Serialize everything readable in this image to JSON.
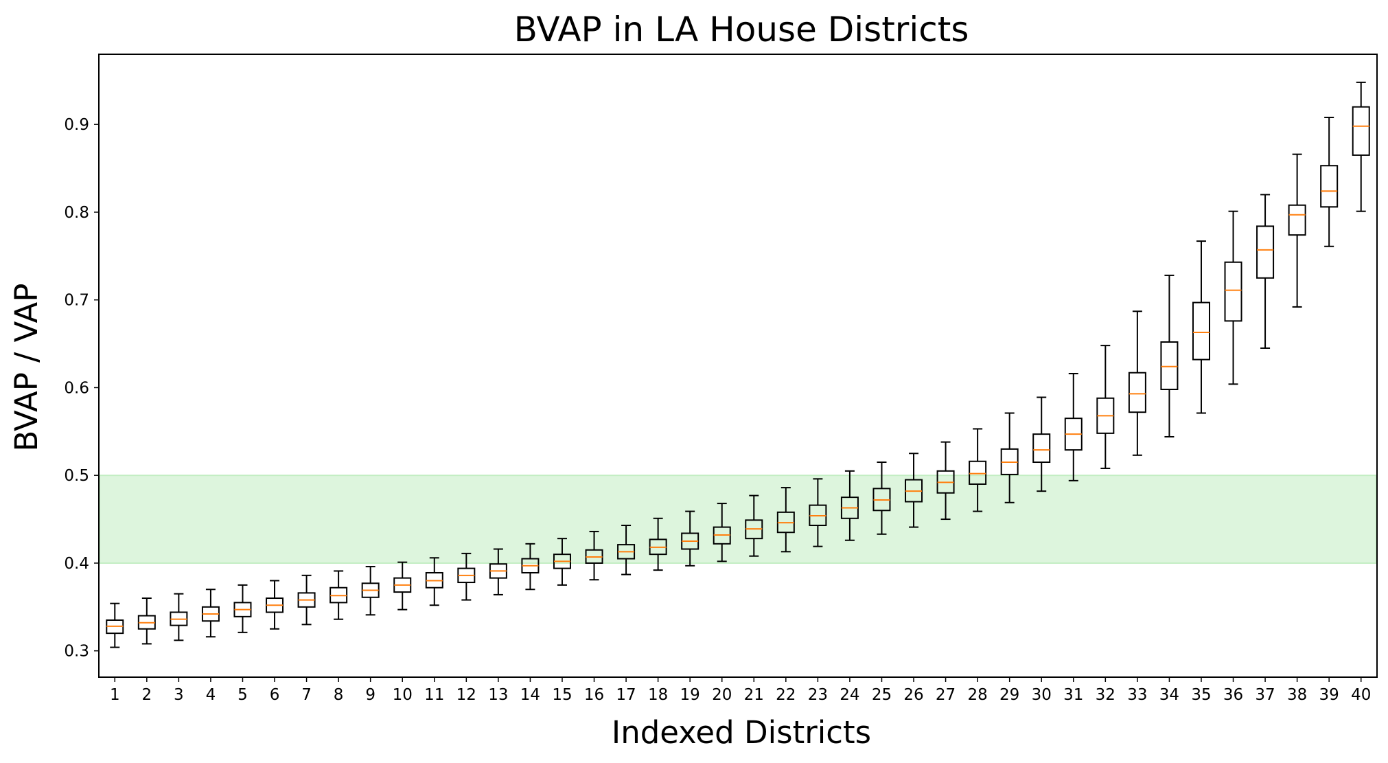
{
  "chart_data": {
    "type": "boxplot",
    "title": "BVAP in LA House Districts",
    "xlabel": "Indexed Districts",
    "ylabel": "BVAP / VAP",
    "ylim": [
      0.27,
      0.98
    ],
    "yticks": [
      "0.3",
      "0.4",
      "0.5",
      "0.6",
      "0.7",
      "0.8",
      "0.9"
    ],
    "highlight_band": {
      "y0": 0.4,
      "y1": 0.5,
      "color": "#ddf5dd",
      "edge_color": "#c3eec3"
    },
    "colors": {
      "box": "#000000",
      "median": "#ff7f0e"
    },
    "categories": [
      "1",
      "2",
      "3",
      "4",
      "5",
      "6",
      "7",
      "8",
      "9",
      "10",
      "11",
      "12",
      "13",
      "14",
      "15",
      "16",
      "17",
      "18",
      "19",
      "20",
      "21",
      "22",
      "23",
      "24",
      "25",
      "26",
      "27",
      "28",
      "29",
      "30",
      "31",
      "32",
      "33",
      "34",
      "35",
      "36",
      "37",
      "38",
      "39",
      "40"
    ],
    "boxes": [
      {
        "whislo": 0.304,
        "q1": 0.32,
        "med": 0.328,
        "q3": 0.335,
        "whishi": 0.354
      },
      {
        "whislo": 0.308,
        "q1": 0.325,
        "med": 0.332,
        "q3": 0.34,
        "whishi": 0.36
      },
      {
        "whislo": 0.312,
        "q1": 0.329,
        "med": 0.336,
        "q3": 0.344,
        "whishi": 0.365
      },
      {
        "whislo": 0.316,
        "q1": 0.334,
        "med": 0.342,
        "q3": 0.35,
        "whishi": 0.37
      },
      {
        "whislo": 0.321,
        "q1": 0.339,
        "med": 0.347,
        "q3": 0.355,
        "whishi": 0.375
      },
      {
        "whislo": 0.325,
        "q1": 0.344,
        "med": 0.352,
        "q3": 0.36,
        "whishi": 0.38
      },
      {
        "whislo": 0.33,
        "q1": 0.35,
        "med": 0.358,
        "q3": 0.366,
        "whishi": 0.386
      },
      {
        "whislo": 0.336,
        "q1": 0.355,
        "med": 0.363,
        "q3": 0.372,
        "whishi": 0.391
      },
      {
        "whislo": 0.341,
        "q1": 0.361,
        "med": 0.369,
        "q3": 0.377,
        "whishi": 0.396
      },
      {
        "whislo": 0.347,
        "q1": 0.367,
        "med": 0.375,
        "q3": 0.383,
        "whishi": 0.401
      },
      {
        "whislo": 0.352,
        "q1": 0.372,
        "med": 0.38,
        "q3": 0.389,
        "whishi": 0.406
      },
      {
        "whislo": 0.358,
        "q1": 0.378,
        "med": 0.386,
        "q3": 0.394,
        "whishi": 0.411
      },
      {
        "whislo": 0.364,
        "q1": 0.383,
        "med": 0.391,
        "q3": 0.399,
        "whishi": 0.416
      },
      {
        "whislo": 0.37,
        "q1": 0.389,
        "med": 0.397,
        "q3": 0.405,
        "whishi": 0.422
      },
      {
        "whislo": 0.375,
        "q1": 0.394,
        "med": 0.402,
        "q3": 0.41,
        "whishi": 0.428
      },
      {
        "whislo": 0.381,
        "q1": 0.4,
        "med": 0.407,
        "q3": 0.415,
        "whishi": 0.436
      },
      {
        "whislo": 0.387,
        "q1": 0.405,
        "med": 0.413,
        "q3": 0.421,
        "whishi": 0.443
      },
      {
        "whislo": 0.392,
        "q1": 0.41,
        "med": 0.418,
        "q3": 0.427,
        "whishi": 0.451
      },
      {
        "whislo": 0.397,
        "q1": 0.416,
        "med": 0.425,
        "q3": 0.434,
        "whishi": 0.459
      },
      {
        "whislo": 0.402,
        "q1": 0.422,
        "med": 0.432,
        "q3": 0.441,
        "whishi": 0.468
      },
      {
        "whislo": 0.408,
        "q1": 0.428,
        "med": 0.439,
        "q3": 0.449,
        "whishi": 0.477
      },
      {
        "whislo": 0.413,
        "q1": 0.435,
        "med": 0.446,
        "q3": 0.458,
        "whishi": 0.486
      },
      {
        "whislo": 0.419,
        "q1": 0.443,
        "med": 0.454,
        "q3": 0.466,
        "whishi": 0.496
      },
      {
        "whislo": 0.426,
        "q1": 0.451,
        "med": 0.463,
        "q3": 0.475,
        "whishi": 0.505
      },
      {
        "whislo": 0.433,
        "q1": 0.46,
        "med": 0.472,
        "q3": 0.485,
        "whishi": 0.515
      },
      {
        "whislo": 0.441,
        "q1": 0.47,
        "med": 0.482,
        "q3": 0.495,
        "whishi": 0.525
      },
      {
        "whislo": 0.45,
        "q1": 0.48,
        "med": 0.492,
        "q3": 0.505,
        "whishi": 0.538
      },
      {
        "whislo": 0.459,
        "q1": 0.49,
        "med": 0.502,
        "q3": 0.516,
        "whishi": 0.553
      },
      {
        "whislo": 0.469,
        "q1": 0.501,
        "med": 0.515,
        "q3": 0.53,
        "whishi": 0.571
      },
      {
        "whislo": 0.482,
        "q1": 0.515,
        "med": 0.529,
        "q3": 0.547,
        "whishi": 0.589
      },
      {
        "whislo": 0.494,
        "q1": 0.529,
        "med": 0.547,
        "q3": 0.565,
        "whishi": 0.616
      },
      {
        "whislo": 0.508,
        "q1": 0.548,
        "med": 0.568,
        "q3": 0.588,
        "whishi": 0.648
      },
      {
        "whislo": 0.523,
        "q1": 0.572,
        "med": 0.593,
        "q3": 0.617,
        "whishi": 0.687
      },
      {
        "whislo": 0.544,
        "q1": 0.598,
        "med": 0.624,
        "q3": 0.652,
        "whishi": 0.728
      },
      {
        "whislo": 0.571,
        "q1": 0.632,
        "med": 0.663,
        "q3": 0.697,
        "whishi": 0.767
      },
      {
        "whislo": 0.604,
        "q1": 0.676,
        "med": 0.711,
        "q3": 0.743,
        "whishi": 0.801
      },
      {
        "whislo": 0.645,
        "q1": 0.725,
        "med": 0.757,
        "q3": 0.784,
        "whishi": 0.82
      },
      {
        "whislo": 0.692,
        "q1": 0.774,
        "med": 0.797,
        "q3": 0.808,
        "whishi": 0.866
      },
      {
        "whislo": 0.761,
        "q1": 0.806,
        "med": 0.824,
        "q3": 0.853,
        "whishi": 0.908
      },
      {
        "whislo": 0.801,
        "q1": 0.865,
        "med": 0.898,
        "q3": 0.92,
        "whishi": 0.948
      }
    ]
  }
}
